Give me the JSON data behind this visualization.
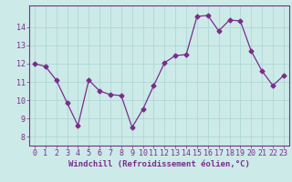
{
  "x": [
    0,
    1,
    2,
    3,
    4,
    5,
    6,
    7,
    8,
    9,
    10,
    11,
    12,
    13,
    14,
    15,
    16,
    17,
    18,
    19,
    20,
    21,
    22,
    23
  ],
  "y": [
    12.0,
    11.85,
    11.1,
    9.85,
    8.6,
    11.1,
    10.5,
    10.3,
    10.25,
    8.5,
    9.5,
    10.8,
    12.05,
    12.45,
    12.5,
    14.6,
    14.65,
    13.8,
    14.4,
    14.35,
    12.7,
    11.6,
    10.8,
    11.35
  ],
  "line_color": "#7b2d8b",
  "marker": "D",
  "marker_size": 2.5,
  "bg_color": "#cceae8",
  "grid_color": "#aad4d2",
  "axis_color": "#7b2d8b",
  "tick_color": "#7b2d8b",
  "xlabel": "Windchill (Refroidissement éolien,°C)",
  "ylim": [
    7.5,
    15.2
  ],
  "yticks": [
    8,
    9,
    10,
    11,
    12,
    13,
    14
  ],
  "xticks": [
    0,
    1,
    2,
    3,
    4,
    5,
    6,
    7,
    8,
    9,
    10,
    11,
    12,
    13,
    14,
    15,
    16,
    17,
    18,
    19,
    20,
    21,
    22,
    23
  ],
  "font_size": 6.0,
  "xlabel_fontsize": 6.5
}
